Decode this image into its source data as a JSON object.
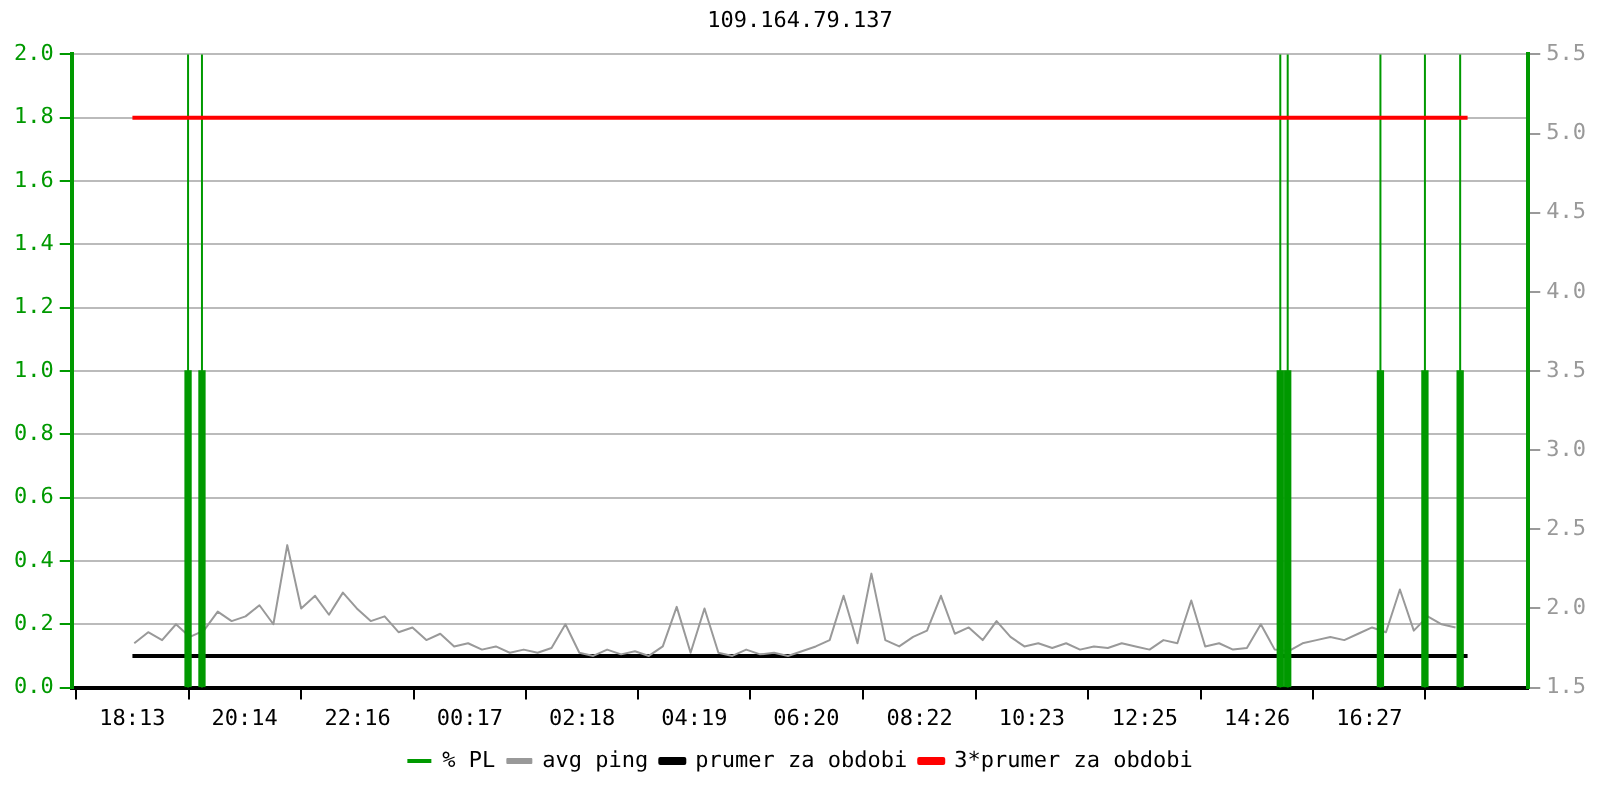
{
  "chart_data": {
    "type": "line",
    "title": "109.164.79.137",
    "xlim": [
      "--01-01T18:13",
      "--01-02T18:13"
    ],
    "xticks": [
      {
        "value": "--01-01T18:13",
        "label": "18:13"
      },
      {
        "value": "--01-01T20:14",
        "label": "20:14"
      },
      {
        "value": "--01-01T22:16",
        "label": "22:16"
      },
      {
        "value": "--01-02T00:17",
        "label": "00:17"
      },
      {
        "value": "--01-02T02:18",
        "label": "02:18"
      },
      {
        "value": "--01-02T04:19",
        "label": "04:19"
      },
      {
        "value": "--01-02T06:20",
        "label": "06:20"
      },
      {
        "value": "--01-02T08:22",
        "label": "08:22"
      },
      {
        "value": "--01-02T10:23",
        "label": "10:23"
      },
      {
        "value": "--01-02T12:25",
        "label": "12:25"
      },
      {
        "value": "--01-02T14:26",
        "label": "14:26"
      },
      {
        "value": "--01-02T16:27",
        "label": "16:27"
      }
    ],
    "ylim": [
      0,
      2
    ],
    "yticks": [
      {
        "value": 0,
        "label": "0.0"
      },
      {
        "value": 0.2,
        "label": "0.2"
      },
      {
        "value": 0.4,
        "label": "0.4"
      },
      {
        "value": 0.6,
        "label": "0.6"
      },
      {
        "value": 0.8,
        "label": "0.8"
      },
      {
        "value": 1,
        "label": "1.0"
      },
      {
        "value": 1.2,
        "label": "1.2"
      },
      {
        "value": 1.4,
        "label": "1.4"
      },
      {
        "value": 1.6,
        "label": "1.6"
      },
      {
        "value": 1.8,
        "label": "1.8"
      },
      {
        "value": 2,
        "label": "2.0"
      }
    ],
    "y2lim": [
      1.5,
      5.5
    ],
    "y2ticks": [
      {
        "value": 1.5,
        "label": "1.5"
      },
      {
        "value": 2,
        "label": "2.0"
      },
      {
        "value": 2.5,
        "label": "2.5"
      },
      {
        "value": 3,
        "label": "3.0"
      },
      {
        "value": 3.5,
        "label": "3.5"
      },
      {
        "value": 4,
        "label": "4.0"
      },
      {
        "value": 4.5,
        "label": "4.5"
      },
      {
        "value": 5,
        "label": "5.0"
      },
      {
        "value": 5.5,
        "label": "5.5"
      }
    ],
    "grid": "y",
    "legend": "bottom",
    "marker": "none",
    "series": [
      {
        "name": "% PL",
        "type": "bar",
        "color": "#009900",
        "x": [
          "--01-01T19:13",
          "--01-01T19:28",
          "--01-02T14:51",
          "--01-02T14:59",
          "--01-02T16:39",
          "--01-02T17:27",
          "--01-02T18:05"
        ],
        "values": [
          1,
          1,
          1,
          1,
          1,
          1,
          1
        ]
      },
      {
        "name": "avg ping",
        "axis": "y2",
        "color": "#999999",
        "x": [
          "--01-01T18:15",
          "--01-01T18:30",
          "--01-01T18:45",
          "--01-01T19:00",
          "--01-01T19:15",
          "--01-01T19:30",
          "--01-01T19:45",
          "--01-01T20:00",
          "--01-01T20:15",
          "--01-01T20:30",
          "--01-01T20:45",
          "--01-01T21:00",
          "--01-01T21:15",
          "--01-01T21:30",
          "--01-01T21:45",
          "--01-01T22:00",
          "--01-01T22:15",
          "--01-01T22:30",
          "--01-01T22:45",
          "--01-01T23:00",
          "--01-01T23:15",
          "--01-01T23:30",
          "--01-01T23:45",
          "--01-02T00:00",
          "--01-02T00:15",
          "--01-02T00:30",
          "--01-02T00:45",
          "--01-02T01:00",
          "--01-02T01:15",
          "--01-02T01:30",
          "--01-02T01:45",
          "--01-02T02:00",
          "--01-02T02:15",
          "--01-02T02:30",
          "--01-02T02:45",
          "--01-02T03:00",
          "--01-02T03:15",
          "--01-02T03:30",
          "--01-02T03:45",
          "--01-02T04:00",
          "--01-02T04:15",
          "--01-02T04:30",
          "--01-02T04:45",
          "--01-02T05:00",
          "--01-02T05:15",
          "--01-02T05:30",
          "--01-02T05:45",
          "--01-02T06:00",
          "--01-02T06:15",
          "--01-02T06:30",
          "--01-02T06:45",
          "--01-02T07:00",
          "--01-02T07:15",
          "--01-02T07:30",
          "--01-02T07:45",
          "--01-02T08:00",
          "--01-02T08:15",
          "--01-02T08:30",
          "--01-02T08:45",
          "--01-02T09:00",
          "--01-02T09:15",
          "--01-02T09:30",
          "--01-02T09:45",
          "--01-02T10:00",
          "--01-02T10:15",
          "--01-02T10:30",
          "--01-02T10:45",
          "--01-02T11:00",
          "--01-02T11:15",
          "--01-02T11:30",
          "--01-02T11:45",
          "--01-02T12:00",
          "--01-02T12:15",
          "--01-02T12:30",
          "--01-02T12:45",
          "--01-02T13:00",
          "--01-02T13:15",
          "--01-02T13:30",
          "--01-02T13:45",
          "--01-02T14:00",
          "--01-02T14:15",
          "--01-02T14:30",
          "--01-02T14:45",
          "--01-02T15:00",
          "--01-02T15:15",
          "--01-02T15:30",
          "--01-02T15:45",
          "--01-02T16:00",
          "--01-02T16:15",
          "--01-02T16:30",
          "--01-02T16:45",
          "--01-02T17:00",
          "--01-02T17:15",
          "--01-02T17:30",
          "--01-02T17:45",
          "--01-02T18:00"
        ],
        "values": [
          1.78,
          1.85,
          1.8,
          1.9,
          1.82,
          1.86,
          1.98,
          1.92,
          1.95,
          2.02,
          1.9,
          2.4,
          2.0,
          2.08,
          1.96,
          2.1,
          2.0,
          1.92,
          1.95,
          1.85,
          1.88,
          1.8,
          1.84,
          1.76,
          1.78,
          1.74,
          1.76,
          1.72,
          1.74,
          1.72,
          1.75,
          1.9,
          1.72,
          1.7,
          1.74,
          1.71,
          1.73,
          1.7,
          1.76,
          2.01,
          1.72,
          2.0,
          1.72,
          1.7,
          1.74,
          1.71,
          1.72,
          1.7,
          1.73,
          1.76,
          1.8,
          2.08,
          1.78,
          2.22,
          1.8,
          1.76,
          1.82,
          1.86,
          2.08,
          1.84,
          1.88,
          1.8,
          1.92,
          1.82,
          1.76,
          1.78,
          1.75,
          1.78,
          1.74,
          1.76,
          1.75,
          1.78,
          1.76,
          1.74,
          1.8,
          1.78,
          2.05,
          1.76,
          1.78,
          1.74,
          1.75,
          1.9,
          1.74,
          1.73,
          1.78,
          1.8,
          1.82,
          1.8,
          1.84,
          1.88,
          1.85,
          2.12,
          1.86,
          1.95,
          1.9,
          1.88
        ]
      },
      {
        "name": "prumer za obdobi",
        "axis": "y2",
        "color": "#000000",
        "x": [
          "--01-01T18:13",
          "--01-02T18:13"
        ],
        "values": [
          1.7,
          1.7
        ]
      },
      {
        "name": "3*prumer za obdobi",
        "axis": "y2",
        "color": "#ff0000",
        "x": [
          "--01-01T18:13",
          "--01-02T18:13"
        ],
        "values": [
          5.1,
          5.1
        ]
      }
    ],
    "ref_lines": [
      {
        "axis": "x",
        "value": "--01-01T19:13",
        "color": "#009900"
      },
      {
        "axis": "x",
        "value": "--01-01T19:28",
        "color": "#009900"
      },
      {
        "axis": "x",
        "value": "--01-02T14:51",
        "color": "#009900"
      },
      {
        "axis": "x",
        "value": "--01-02T14:59",
        "color": "#009900"
      },
      {
        "axis": "x",
        "value": "--01-02T16:39",
        "color": "#009900"
      },
      {
        "axis": "x",
        "value": "--01-02T17:27",
        "color": "#009900"
      },
      {
        "axis": "x",
        "value": "--01-02T18:05",
        "color": "#009900"
      }
    ]
  }
}
